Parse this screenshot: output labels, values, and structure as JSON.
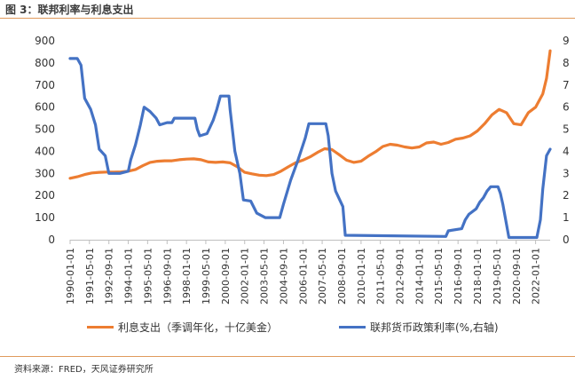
{
  "figure": {
    "title": "图 3：联邦利率与利息支出",
    "source": "资料来源：FRED，天风证券研究所"
  },
  "chart_data": {
    "type": "line",
    "x_start": "1990-01-01",
    "x_end": "2023-01-01",
    "xticks": [
      "1990-01-01",
      "1991-05-01",
      "1992-09-01",
      "1994-01-01",
      "1995-05-01",
      "1996-09-01",
      "1998-01-01",
      "1999-05-01",
      "2000-09-01",
      "2002-01-01",
      "2003-05-01",
      "2004-09-01",
      "2006-01-01",
      "2007-05-01",
      "2008-09-01",
      "2010-01-01",
      "2011-05-01",
      "2012-09-01",
      "2014-01-01",
      "2015-05-01",
      "2016-09-01",
      "2018-01-01",
      "2019-05-01",
      "2020-09-01",
      "2022-01-01"
    ],
    "y_left": {
      "min": 0,
      "max": 900,
      "step": 100,
      "ticks": [
        "0",
        "100",
        "200",
        "300",
        "400",
        "500",
        "600",
        "700",
        "800",
        "900"
      ]
    },
    "y_right": {
      "min": 0,
      "max": 9,
      "step": 1,
      "ticks": [
        "0",
        "1",
        "2",
        "3",
        "4",
        "5",
        "6",
        "7",
        "8",
        "9"
      ]
    },
    "grid": false,
    "legend_position": "bottom",
    "series": [
      {
        "name": "利息支出（季调年化，十亿美金）",
        "axis": "left",
        "color": "#ed7d31",
        "points": [
          [
            "1990-01-01",
            278
          ],
          [
            "1990-07-01",
            285
          ],
          [
            "1991-01-01",
            295
          ],
          [
            "1991-07-01",
            302
          ],
          [
            "1992-01-01",
            305
          ],
          [
            "1992-07-01",
            306
          ],
          [
            "1993-01-01",
            306
          ],
          [
            "1993-07-01",
            307
          ],
          [
            "1994-01-01",
            310
          ],
          [
            "1994-07-01",
            318
          ],
          [
            "1995-01-01",
            335
          ],
          [
            "1995-07-01",
            350
          ],
          [
            "1996-01-01",
            355
          ],
          [
            "1996-07-01",
            357
          ],
          [
            "1997-01-01",
            357
          ],
          [
            "1997-07-01",
            362
          ],
          [
            "1998-01-01",
            365
          ],
          [
            "1998-07-01",
            366
          ],
          [
            "1999-01-01",
            362
          ],
          [
            "1999-07-01",
            352
          ],
          [
            "2000-01-01",
            350
          ],
          [
            "2000-07-01",
            352
          ],
          [
            "2001-01-01",
            348
          ],
          [
            "2001-07-01",
            330
          ],
          [
            "2002-01-01",
            305
          ],
          [
            "2002-07-01",
            298
          ],
          [
            "2003-01-01",
            292
          ],
          [
            "2003-07-01",
            290
          ],
          [
            "2004-01-01",
            295
          ],
          [
            "2004-07-01",
            310
          ],
          [
            "2005-01-01",
            330
          ],
          [
            "2005-07-01",
            348
          ],
          [
            "2006-01-01",
            360
          ],
          [
            "2006-07-01",
            375
          ],
          [
            "2007-01-01",
            395
          ],
          [
            "2007-07-01",
            412
          ],
          [
            "2008-01-01",
            408
          ],
          [
            "2008-07-01",
            385
          ],
          [
            "2009-01-01",
            360
          ],
          [
            "2009-07-01",
            350
          ],
          [
            "2010-01-01",
            355
          ],
          [
            "2010-07-01",
            378
          ],
          [
            "2011-01-01",
            398
          ],
          [
            "2011-07-01",
            422
          ],
          [
            "2012-01-01",
            432
          ],
          [
            "2012-07-01",
            428
          ],
          [
            "2013-01-01",
            420
          ],
          [
            "2013-07-01",
            415
          ],
          [
            "2014-01-01",
            420
          ],
          [
            "2014-07-01",
            438
          ],
          [
            "2015-01-01",
            442
          ],
          [
            "2015-07-01",
            432
          ],
          [
            "2016-01-01",
            440
          ],
          [
            "2016-07-01",
            455
          ],
          [
            "2017-01-01",
            460
          ],
          [
            "2017-07-01",
            470
          ],
          [
            "2018-01-01",
            492
          ],
          [
            "2018-07-01",
            525
          ],
          [
            "2019-01-01",
            565
          ],
          [
            "2019-07-01",
            590
          ],
          [
            "2020-01-01",
            575
          ],
          [
            "2020-07-01",
            525
          ],
          [
            "2021-01-01",
            520
          ],
          [
            "2021-07-01",
            575
          ],
          [
            "2022-01-01",
            600
          ],
          [
            "2022-07-01",
            660
          ],
          [
            "2022-10-01",
            730
          ],
          [
            "2023-01-01",
            855
          ]
        ]
      },
      {
        "name": "联邦货币政策利率(%,右轴)",
        "axis": "right",
        "color": "#4472c4",
        "points": [
          [
            "1990-01-01",
            8.2
          ],
          [
            "1990-07-01",
            8.2
          ],
          [
            "1990-10-01",
            7.9
          ],
          [
            "1991-01-01",
            6.4
          ],
          [
            "1991-06-01",
            5.9
          ],
          [
            "1991-10-01",
            5.2
          ],
          [
            "1992-01-01",
            4.1
          ],
          [
            "1992-06-01",
            3.8
          ],
          [
            "1992-09-01",
            3.0
          ],
          [
            "1993-06-01",
            3.0
          ],
          [
            "1994-01-01",
            3.1
          ],
          [
            "1994-03-01",
            3.6
          ],
          [
            "1994-07-01",
            4.3
          ],
          [
            "1994-11-01",
            5.2
          ],
          [
            "1995-02-01",
            6.0
          ],
          [
            "1995-07-01",
            5.8
          ],
          [
            "1995-12-01",
            5.5
          ],
          [
            "1996-03-01",
            5.2
          ],
          [
            "1996-09-01",
            5.3
          ],
          [
            "1997-01-01",
            5.3
          ],
          [
            "1997-03-01",
            5.5
          ],
          [
            "1998-01-01",
            5.5
          ],
          [
            "1998-08-01",
            5.5
          ],
          [
            "1998-10-01",
            5.0
          ],
          [
            "1998-12-01",
            4.7
          ],
          [
            "1999-06-01",
            4.8
          ],
          [
            "1999-11-01",
            5.4
          ],
          [
            "2000-02-01",
            5.9
          ],
          [
            "2000-05-01",
            6.5
          ],
          [
            "2000-12-01",
            6.5
          ],
          [
            "2001-01-01",
            5.9
          ],
          [
            "2001-05-01",
            4.0
          ],
          [
            "2001-09-01",
            3.0
          ],
          [
            "2001-12-01",
            1.8
          ],
          [
            "2002-06-01",
            1.75
          ],
          [
            "2002-11-01",
            1.2
          ],
          [
            "2003-06-01",
            1.0
          ],
          [
            "2004-06-01",
            1.0
          ],
          [
            "2004-09-01",
            1.6
          ],
          [
            "2005-03-01",
            2.7
          ],
          [
            "2005-09-01",
            3.6
          ],
          [
            "2006-03-01",
            4.6
          ],
          [
            "2006-06-01",
            5.25
          ],
          [
            "2007-08-01",
            5.25
          ],
          [
            "2007-10-01",
            4.7
          ],
          [
            "2008-01-01",
            3.0
          ],
          [
            "2008-04-01",
            2.2
          ],
          [
            "2008-10-01",
            1.5
          ],
          [
            "2008-12-01",
            0.2
          ],
          [
            "2015-11-01",
            0.15
          ],
          [
            "2016-01-01",
            0.4
          ],
          [
            "2016-12-01",
            0.5
          ],
          [
            "2017-03-01",
            0.9
          ],
          [
            "2017-06-01",
            1.15
          ],
          [
            "2017-12-01",
            1.4
          ],
          [
            "2018-03-01",
            1.7
          ],
          [
            "2018-06-01",
            1.9
          ],
          [
            "2018-09-01",
            2.2
          ],
          [
            "2018-12-01",
            2.4
          ],
          [
            "2019-06-01",
            2.4
          ],
          [
            "2019-08-01",
            2.1
          ],
          [
            "2019-10-01",
            1.6
          ],
          [
            "2020-03-01",
            0.1
          ],
          [
            "2022-02-01",
            0.1
          ],
          [
            "2022-05-01",
            0.9
          ],
          [
            "2022-07-01",
            2.3
          ],
          [
            "2022-10-01",
            3.8
          ],
          [
            "2023-01-01",
            4.1
          ]
        ]
      }
    ]
  }
}
